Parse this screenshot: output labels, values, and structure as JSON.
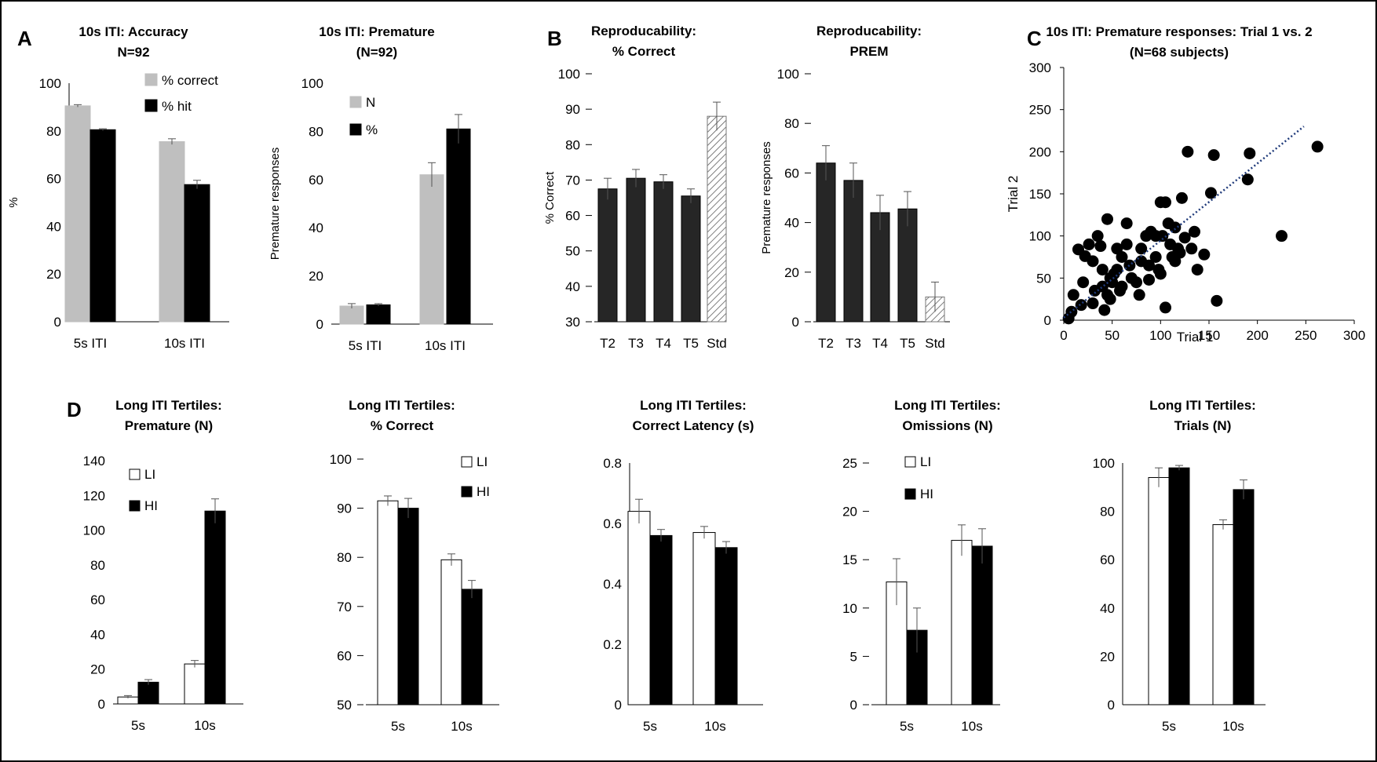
{
  "panel_letters": [
    "A",
    "B",
    "C",
    "D"
  ],
  "colors": {
    "gray": "#bfbfbf",
    "black": "#000000",
    "dark": "#262626",
    "white": "#ffffff",
    "trend": "#1f3a7a"
  },
  "chart_data": [
    {
      "id": "a1",
      "type": "bar",
      "title": [
        "10s ITI: Accuracy",
        "N=92"
      ],
      "ylabel": "%",
      "xlabel": "",
      "ylim": [
        0,
        100
      ],
      "yticks": [
        0,
        20,
        40,
        60,
        80,
        100
      ],
      "categories": [
        "5s ITI",
        "10s ITI"
      ],
      "series": [
        {
          "name": "% correct",
          "color": "#bfbfbf",
          "values": [
            90.5,
            75.5
          ],
          "errors": [
            0.5,
            1.2
          ]
        },
        {
          "name": "% hit",
          "color": "#000000",
          "values": [
            80.5,
            57.5
          ],
          "errors": [
            0.4,
            1.8
          ]
        }
      ],
      "legend_position": "top-right"
    },
    {
      "id": "a2",
      "type": "bar",
      "title": [
        "10s ITI: Premature",
        "(N=92)"
      ],
      "ylabel": "Premature responses",
      "xlabel": "",
      "ylim": [
        0,
        100
      ],
      "yticks": [
        0,
        20,
        40,
        60,
        80,
        100
      ],
      "categories": [
        "5s ITI",
        "10s ITI"
      ],
      "series": [
        {
          "name": "N",
          "color": "#bfbfbf",
          "values": [
            7.5,
            62
          ],
          "errors": [
            1.0,
            5
          ]
        },
        {
          "name": "%",
          "color": "#000000",
          "values": [
            8,
            81
          ],
          "errors": [
            0.5,
            6
          ]
        }
      ],
      "legend_position": "top-left"
    },
    {
      "id": "b1",
      "type": "bar",
      "title": [
        "Reproducability:",
        "% Correct"
      ],
      "ylabel": "% Correct",
      "xlabel": "",
      "ylim": [
        30,
        100
      ],
      "yticks": [
        30,
        40,
        50,
        60,
        70,
        80,
        90,
        100
      ],
      "categories": [
        "T2",
        "T3",
        "T4",
        "T5",
        "Std"
      ],
      "series": [
        {
          "name": "",
          "color": "#262626",
          "values": [
            67.5,
            70.5,
            69.5,
            65.5,
            88
          ],
          "errors": [
            3,
            2.5,
            2,
            2,
            4
          ]
        }
      ],
      "legend_position": "none"
    },
    {
      "id": "b2",
      "type": "bar",
      "title": [
        "Reproducability:",
        "PREM"
      ],
      "ylabel": "Premature responses",
      "xlabel": "",
      "ylim": [
        0,
        100
      ],
      "yticks": [
        0,
        20,
        40,
        60,
        80,
        100
      ],
      "categories": [
        "T2",
        "T3",
        "T4",
        "T5",
        "Std"
      ],
      "series": [
        {
          "name": "",
          "color": "#262626",
          "values": [
            64,
            57,
            44,
            45.5,
            10
          ],
          "errors": [
            7,
            7,
            7,
            7,
            6
          ]
        }
      ],
      "legend_position": "none"
    },
    {
      "id": "c",
      "type": "scatter",
      "title": [
        "10s ITI: Premature responses: Trial 1 vs. 2",
        "(N=68 subjects)"
      ],
      "xlabel": "Trial 1",
      "ylabel": "Trial 2",
      "xlim": [
        0,
        300
      ],
      "ylim": [
        0,
        300
      ],
      "xticks": [
        0,
        50,
        100,
        150,
        200,
        250,
        300
      ],
      "yticks": [
        0,
        50,
        100,
        150,
        200,
        250,
        300
      ],
      "points": [
        [
          5,
          2
        ],
        [
          8,
          10
        ],
        [
          10,
          30
        ],
        [
          15,
          84
        ],
        [
          22,
          76
        ],
        [
          26,
          90
        ],
        [
          18,
          18
        ],
        [
          30,
          70
        ],
        [
          35,
          100
        ],
        [
          38,
          88
        ],
        [
          45,
          120
        ],
        [
          45,
          30
        ],
        [
          40,
          40
        ],
        [
          40,
          60
        ],
        [
          42,
          12
        ],
        [
          48,
          25
        ],
        [
          48,
          50
        ],
        [
          55,
          85
        ],
        [
          55,
          60
        ],
        [
          50,
          45
        ],
        [
          60,
          75
        ],
        [
          65,
          90
        ],
        [
          60,
          40
        ],
        [
          65,
          115
        ],
        [
          68,
          65
        ],
        [
          75,
          45
        ],
        [
          80,
          85
        ],
        [
          80,
          70
        ],
        [
          85,
          100
        ],
        [
          88,
          65
        ],
        [
          90,
          105
        ],
        [
          95,
          100
        ],
        [
          95,
          75
        ],
        [
          98,
          60
        ],
        [
          100,
          140
        ],
        [
          100,
          55
        ],
        [
          105,
          140
        ],
        [
          108,
          115
        ],
        [
          112,
          75
        ],
        [
          115,
          110
        ],
        [
          118,
          85
        ],
        [
          120,
          80
        ],
        [
          125,
          98
        ],
        [
          122,
          145
        ],
        [
          128,
          200
        ],
        [
          132,
          85
        ],
        [
          138,
          60
        ],
        [
          145,
          78
        ],
        [
          152,
          151
        ],
        [
          155,
          196
        ],
        [
          158,
          23
        ],
        [
          190,
          167
        ],
        [
          192,
          198
        ],
        [
          225,
          100
        ],
        [
          262,
          206
        ],
        [
          105,
          15
        ],
        [
          88,
          48
        ],
        [
          70,
          50
        ],
        [
          58,
          35
        ],
        [
          52,
          55
        ],
        [
          110,
          90
        ],
        [
          115,
          70
        ],
        [
          102,
          100
        ],
        [
          30,
          20
        ],
        [
          32,
          35
        ],
        [
          20,
          45
        ],
        [
          135,
          105
        ],
        [
          78,
          30
        ]
      ],
      "trendline": [
        [
          0,
          3
        ],
        [
          248,
          230
        ]
      ]
    },
    {
      "id": "d1",
      "type": "bar",
      "title": [
        "Long ITI Tertiles:",
        "Premature (N)"
      ],
      "ylabel": "",
      "xlabel": "",
      "ylim": [
        0,
        140
      ],
      "yticks": [
        0,
        20,
        40,
        60,
        80,
        100,
        120,
        140
      ],
      "categories": [
        "5s",
        "10s"
      ],
      "series": [
        {
          "name": "LI",
          "color": "#ffffff",
          "values": [
            4,
            23
          ],
          "errors": [
            0.8,
            2
          ]
        },
        {
          "name": "HI",
          "color": "#000000",
          "values": [
            12.5,
            111
          ],
          "errors": [
            1.5,
            7
          ]
        }
      ],
      "legend_position": "top-left"
    },
    {
      "id": "d2",
      "type": "bar",
      "title": [
        "Long ITI Tertiles:",
        "% Correct"
      ],
      "ylabel": "",
      "xlabel": "",
      "ylim": [
        50,
        100
      ],
      "yticks": [
        50,
        60,
        70,
        80,
        90,
        100
      ],
      "categories": [
        "5s",
        "10s"
      ],
      "series": [
        {
          "name": "LI",
          "color": "#ffffff",
          "values": [
            91.5,
            79.5
          ],
          "errors": [
            1,
            1.2
          ]
        },
        {
          "name": "HI",
          "color": "#000000",
          "values": [
            90,
            73.5
          ],
          "errors": [
            2,
            1.8
          ]
        }
      ],
      "legend_position": "top-right"
    },
    {
      "id": "d3",
      "type": "bar",
      "title": [
        "Long ITI Tertiles:",
        "Correct Latency (s)"
      ],
      "ylabel": "",
      "xlabel": "",
      "ylim": [
        0,
        0.8
      ],
      "yticks": [
        0.0,
        0.2,
        0.4,
        0.6,
        0.8
      ],
      "categories": [
        "5s",
        "10s"
      ],
      "series": [
        {
          "name": "LI",
          "color": "#ffffff",
          "values": [
            0.64,
            0.57
          ],
          "errors": [
            0.04,
            0.02
          ]
        },
        {
          "name": "HI",
          "color": "#000000",
          "values": [
            0.56,
            0.52
          ],
          "errors": [
            0.02,
            0.02
          ]
        }
      ],
      "legend_position": "none"
    },
    {
      "id": "d4",
      "type": "bar",
      "title": [
        "Long ITI Tertiles:",
        "Omissions (N)"
      ],
      "ylabel": "",
      "xlabel": "",
      "ylim": [
        0,
        25
      ],
      "yticks": [
        0,
        5,
        10,
        15,
        20,
        25
      ],
      "categories": [
        "5s",
        "10s"
      ],
      "series": [
        {
          "name": "LI",
          "color": "#ffffff",
          "values": [
            12.7,
            17
          ],
          "errors": [
            2.4,
            1.6
          ]
        },
        {
          "name": "HI",
          "color": "#000000",
          "values": [
            7.7,
            16.4
          ],
          "errors": [
            2.3,
            1.8
          ]
        }
      ],
      "legend_position": "top-left"
    },
    {
      "id": "d5",
      "type": "bar",
      "title": [
        "Long ITI Tertiles:",
        "Trials (N)"
      ],
      "ylabel": "",
      "xlabel": "",
      "ylim": [
        0,
        100
      ],
      "yticks": [
        0,
        20,
        40,
        60,
        80,
        100
      ],
      "categories": [
        "5s",
        "10s"
      ],
      "series": [
        {
          "name": "LI",
          "color": "#ffffff",
          "values": [
            94,
            74.5
          ],
          "errors": [
            4,
            2
          ]
        },
        {
          "name": "HI",
          "color": "#000000",
          "values": [
            98,
            89
          ],
          "errors": [
            1,
            4
          ]
        }
      ],
      "legend_position": "none"
    }
  ]
}
